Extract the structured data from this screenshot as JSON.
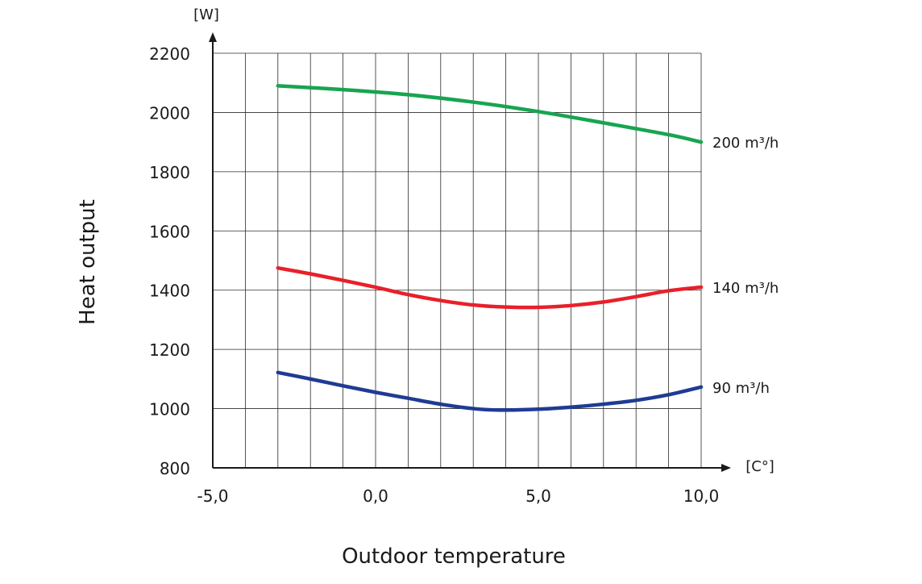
{
  "chart_data": {
    "type": "line",
    "xlabel": "Outdoor temperature",
    "ylabel": "Heat output",
    "x_unit": "[C°]",
    "y_unit": "[W]",
    "xlim": [
      -5,
      10
    ],
    "ylim": [
      800,
      2200
    ],
    "x_ticks": [
      -5,
      0,
      5,
      10
    ],
    "x_tick_labels": [
      "-5,0",
      "0,0",
      "5,0",
      "10,0"
    ],
    "y_ticks": [
      800,
      1000,
      1200,
      1400,
      1600,
      1800,
      2000,
      2200
    ],
    "y_tick_labels": [
      "800",
      "1000",
      "1200",
      "1400",
      "1600",
      "1800",
      "2000",
      "2200"
    ],
    "grid": true,
    "series": [
      {
        "name": "200 m³/h",
        "color": "#17a550",
        "x": [
          -3,
          -1,
          1,
          3,
          5,
          7,
          9,
          10
        ],
        "values": [
          2090,
          2077,
          2060,
          2035,
          2003,
          1965,
          1925,
          1900
        ]
      },
      {
        "name": "140 m³/h",
        "color": "#e8202a",
        "x": [
          -3,
          -2,
          -1,
          0,
          1,
          2,
          3,
          4,
          5,
          6,
          7,
          8,
          9,
          10
        ],
        "values": [
          1475,
          1455,
          1433,
          1410,
          1385,
          1365,
          1350,
          1343,
          1342,
          1348,
          1360,
          1378,
          1398,
          1410
        ]
      },
      {
        "name": "90 m³/h",
        "color": "#1f3b94",
        "x": [
          -3,
          -2,
          -1,
          0,
          1,
          2,
          3,
          3.8,
          5,
          6,
          7,
          8,
          9,
          10
        ],
        "values": [
          1122,
          1100,
          1077,
          1055,
          1035,
          1015,
          1000,
          995,
          998,
          1005,
          1015,
          1028,
          1047,
          1073
        ]
      }
    ]
  }
}
